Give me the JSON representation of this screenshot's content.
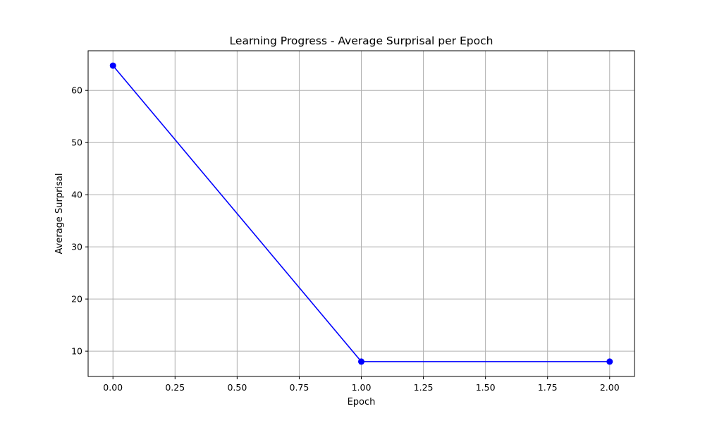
{
  "chart_data": {
    "type": "line",
    "title": "Learning Progress - Average Surprisal per Epoch",
    "xlabel": "Epoch",
    "ylabel": "Average Surprisal",
    "xlim": [
      -0.1,
      2.1
    ],
    "ylim": [
      5.15,
      67.6
    ],
    "xticks": [
      0.0,
      0.25,
      0.5,
      0.75,
      1.0,
      1.25,
      1.5,
      1.75,
      2.0
    ],
    "xtick_labels": [
      "0.00",
      "0.25",
      "0.50",
      "0.75",
      "1.00",
      "1.25",
      "1.50",
      "1.75",
      "2.00"
    ],
    "yticks": [
      10,
      20,
      30,
      40,
      50,
      60
    ],
    "ytick_labels": [
      "10",
      "20",
      "30",
      "40",
      "50",
      "60"
    ],
    "grid": true,
    "series": [
      {
        "color": "#0000ff",
        "marker": "circle",
        "x": [
          0,
          1,
          2
        ],
        "y": [
          64.75,
          8.0,
          8.0
        ]
      }
    ]
  }
}
